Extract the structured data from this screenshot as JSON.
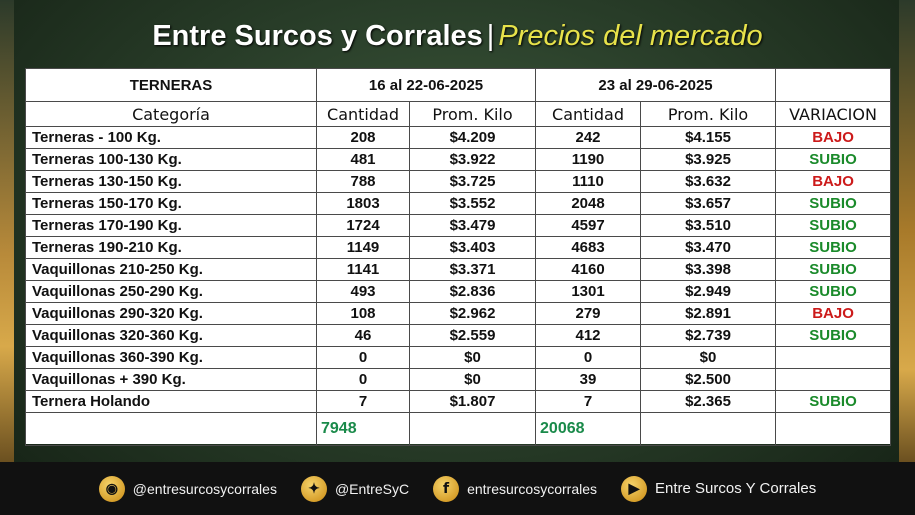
{
  "title": {
    "main": "Entre Surcos y Corrales",
    "separator": "|",
    "sub": "Precios del mercado"
  },
  "table": {
    "header_left": "TERNERAS",
    "period1": "16 al 22-06-2025",
    "period2": "23 al 29-06-2025",
    "col_categoria": "Categoría",
    "col_cantidad": "Cantidad",
    "col_prom": "Prom. Kilo",
    "col_variacion": "VARIACION",
    "rows": [
      {
        "cat": "Terneras - 100 Kg.",
        "q1": "208",
        "p1": "$4.209",
        "q2": "242",
        "p2": "$4.155",
        "var": "BAJO"
      },
      {
        "cat": "Terneras 100-130 Kg.",
        "q1": "481",
        "p1": "$3.922",
        "q2": "1190",
        "p2": "$3.925",
        "var": "SUBIO"
      },
      {
        "cat": "Terneras 130-150 Kg.",
        "q1": "788",
        "p1": "$3.725",
        "q2": "1110",
        "p2": "$3.632",
        "var": "BAJO"
      },
      {
        "cat": "Terneras 150-170 Kg.",
        "q1": "1803",
        "p1": "$3.552",
        "q2": "2048",
        "p2": "$3.657",
        "var": "SUBIO"
      },
      {
        "cat": "Terneras 170-190 Kg.",
        "q1": "1724",
        "p1": "$3.479",
        "q2": "4597",
        "p2": "$3.510",
        "var": "SUBIO"
      },
      {
        "cat": "Terneras 190-210 Kg.",
        "q1": "1149",
        "p1": "$3.403",
        "q2": "4683",
        "p2": "$3.470",
        "var": "SUBIO"
      },
      {
        "cat": "Vaquillonas 210-250 Kg.",
        "q1": "1141",
        "p1": "$3.371",
        "q2": "4160",
        "p2": "$3.398",
        "var": "SUBIO"
      },
      {
        "cat": "Vaquillonas 250-290 Kg.",
        "q1": "493",
        "p1": "$2.836",
        "q2": "1301",
        "p2": "$2.949",
        "var": "SUBIO"
      },
      {
        "cat": "Vaquillonas 290-320 Kg.",
        "q1": "108",
        "p1": "$2.962",
        "q2": "279",
        "p2": "$2.891",
        "var": "BAJO"
      },
      {
        "cat": "Vaquillonas 320-360 Kg.",
        "q1": "46",
        "p1": "$2.559",
        "q2": "412",
        "p2": "$2.739",
        "var": "SUBIO"
      },
      {
        "cat": "Vaquillonas 360-390 Kg.",
        "q1": "0",
        "p1": "$0",
        "q2": "0",
        "p2": "$0",
        "var": ""
      },
      {
        "cat": "Vaquillonas + 390 Kg.",
        "q1": "0",
        "p1": "$0",
        "q2": "39",
        "p2": "$2.500",
        "var": ""
      },
      {
        "cat": "Ternera Holando",
        "q1": "7",
        "p1": "$1.807",
        "q2": "7",
        "p2": "$2.365",
        "var": "SUBIO"
      }
    ],
    "total1": "7948",
    "total2": "20068"
  },
  "colors": {
    "up": "#1a8a2a",
    "down": "#cc1a1a",
    "total": "#1a8a4a",
    "subtitle": "#e7e24a"
  },
  "footer": [
    {
      "icon": "instagram-icon",
      "label": "@entresurcosycorrales"
    },
    {
      "icon": "twitter-icon",
      "label": "@EntreSyC"
    },
    {
      "icon": "facebook-icon",
      "label": "entresurcosycorrales"
    },
    {
      "icon": "youtube-icon",
      "label": "Entre Surcos Y Corrales"
    }
  ]
}
